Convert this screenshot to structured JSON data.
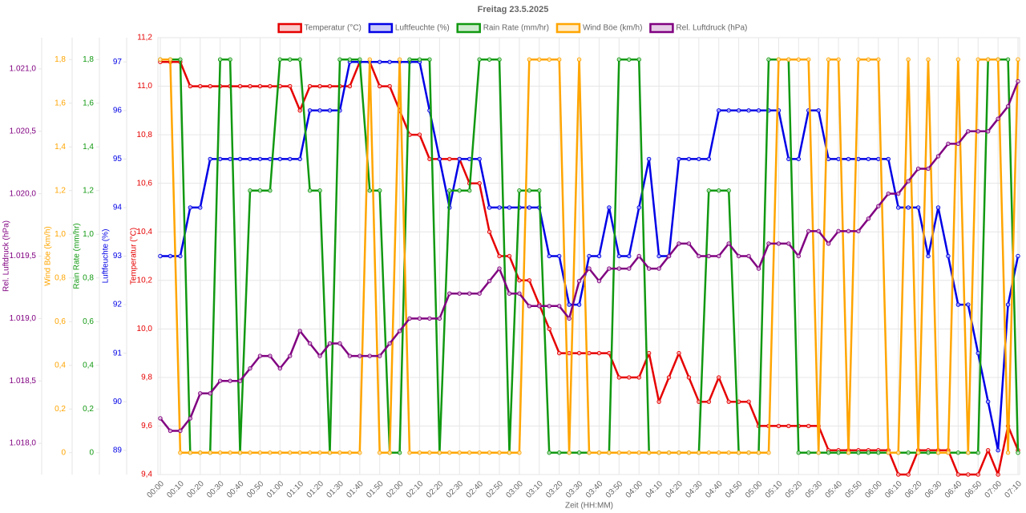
{
  "chart_data": {
    "type": "line",
    "title": "Freitag 23.5.2025",
    "xlabel": "Zeit (HH:MM)",
    "categories": [
      "00:00",
      null,
      "00:10",
      null,
      "00:20",
      null,
      "00:30",
      null,
      "00:40",
      null,
      "00:50",
      null,
      "01:00",
      null,
      "01:10",
      null,
      "01:20",
      null,
      "01:30",
      null,
      "01:40",
      null,
      "01:50",
      null,
      "02:00",
      null,
      "02:10",
      null,
      "02:20",
      null,
      "02:30",
      null,
      "02:40",
      null,
      "02:50",
      null,
      "03:00",
      null,
      "03:10",
      null,
      "03:20",
      null,
      "03:30",
      null,
      "03:40",
      null,
      "03:50",
      null,
      "04:00",
      null,
      "04:10",
      null,
      "04:20",
      null,
      "04:30",
      null,
      "04:40",
      null,
      "04:50",
      null,
      "05:00",
      null,
      "05:10",
      null,
      "05:20",
      null,
      "05:30",
      null,
      "05:40",
      null,
      "05:50",
      null,
      "06:00",
      null,
      "06:10",
      null,
      "06:20",
      null,
      "06:30",
      null,
      "06:40",
      null,
      "06:50",
      null,
      "07:00",
      null,
      "07:10"
    ],
    "grid": true,
    "ylabel": "Temperatur (°C)",
    "ylim": [
      9.4,
      11.2
    ],
    "yticks": [
      {
        "value": 9.4,
        "label": "9,4"
      },
      {
        "value": 9.6,
        "label": "9,6"
      },
      {
        "value": 9.8,
        "label": "9,8"
      },
      {
        "value": 10.0,
        "label": "10,0"
      },
      {
        "value": 10.2,
        "label": "10,2"
      },
      {
        "value": 10.4,
        "label": "10,4"
      },
      {
        "value": 10.6,
        "label": "10,6"
      },
      {
        "value": 10.8,
        "label": "10,8"
      },
      {
        "value": 11.0,
        "label": "11,0"
      },
      {
        "value": 11.2,
        "label": "11,2"
      }
    ],
    "y2label": "Luftfeuchte (%)",
    "y2lim": [
      88.5,
      97.5
    ],
    "y2ticks": [
      89,
      90,
      91,
      92,
      93,
      94,
      95,
      96,
      97
    ],
    "y3label": "Rain Rate (mm/hr)",
    "y3lim": [
      -0.1,
      1.9
    ],
    "y3ticks": [
      0,
      {
        "value": 0.2,
        "label": "0,2"
      },
      {
        "value": 0.4,
        "label": "0,4"
      },
      {
        "value": 0.6,
        "label": "0,6"
      },
      {
        "value": 0.8,
        "label": "0,8"
      },
      {
        "value": 1.0,
        "label": "1,0"
      },
      {
        "value": 1.2,
        "label": "1,2"
      },
      {
        "value": 1.4,
        "label": "1,4"
      },
      {
        "value": 1.6,
        "label": "1,6"
      },
      {
        "value": 1.8,
        "label": "1,8"
      }
    ],
    "y4label": "Wind Böe (km/h)",
    "y4lim": [
      -0.1,
      1.9
    ],
    "y4ticks": [
      0,
      {
        "value": 0.2,
        "label": "0,2"
      },
      {
        "value": 0.4,
        "label": "0,4"
      },
      {
        "value": 0.6,
        "label": "0,6"
      },
      {
        "value": 0.8,
        "label": "0,8"
      },
      {
        "value": 1.0,
        "label": "1,0"
      },
      {
        "value": 1.2,
        "label": "1,2"
      },
      {
        "value": 1.4,
        "label": "1,4"
      },
      {
        "value": 1.6,
        "label": "1,6"
      },
      {
        "value": 1.8,
        "label": "1,8"
      }
    ],
    "y5label": "Rel. Luftdruck (hPa)",
    "y5lim": [
      1017.75,
      1021.25
    ],
    "y5ticks": [
      {
        "value": 1018.0,
        "label": "1.018,0"
      },
      {
        "value": 1018.5,
        "label": "1.018,5"
      },
      {
        "value": 1019.0,
        "label": "1.019,0"
      },
      {
        "value": 1019.5,
        "label": "1.019,5"
      },
      {
        "value": 1020.0,
        "label": "1.020,0"
      },
      {
        "value": 1020.5,
        "label": "1.020,5"
      },
      {
        "value": 1021.0,
        "label": "1.021,0"
      }
    ],
    "series": [
      {
        "name": "Temperatur (°C)",
        "color": "#e60000",
        "axis": "y",
        "values": [
          11.1,
          11.1,
          11.1,
          11.0,
          11.0,
          11.0,
          11.0,
          11.0,
          11.0,
          11.0,
          11.0,
          11.0,
          11.0,
          11.0,
          10.9,
          11.0,
          11.0,
          11.0,
          11.0,
          11.0,
          11.1,
          11.1,
          11.0,
          11.0,
          10.9,
          10.8,
          10.8,
          10.7,
          10.7,
          10.7,
          10.7,
          10.6,
          10.6,
          10.4,
          10.3,
          10.3,
          10.2,
          10.2,
          10.1,
          10.0,
          9.9,
          9.9,
          9.9,
          9.9,
          9.9,
          9.9,
          9.8,
          9.8,
          9.8,
          9.9,
          9.7,
          9.8,
          9.9,
          9.8,
          9.7,
          9.7,
          9.8,
          9.7,
          9.7,
          9.7,
          9.6,
          9.6,
          9.6,
          9.6,
          9.6,
          9.6,
          9.6,
          9.5,
          9.5,
          9.5,
          9.5,
          9.5,
          9.5,
          9.5,
          9.4,
          9.4,
          9.5,
          9.5,
          9.5,
          9.5,
          9.4,
          9.4,
          9.4,
          9.5,
          9.4,
          9.6,
          9.5
        ]
      },
      {
        "name": "Luftfeuchte (%)",
        "color": "#0000e6",
        "axis": "y2",
        "values": [
          93,
          93,
          93,
          94,
          94,
          95,
          95,
          95,
          95,
          95,
          95,
          95,
          95,
          95,
          95,
          96,
          96,
          96,
          96,
          97,
          97,
          97,
          97,
          97,
          97,
          97,
          97,
          96,
          95,
          94,
          95,
          95,
          95,
          94,
          94,
          94,
          94,
          94,
          94,
          93,
          93,
          92,
          92,
          93,
          93,
          94,
          93,
          93,
          94,
          95,
          93,
          93,
          95,
          95,
          95,
          95,
          96,
          96,
          96,
          96,
          96,
          96,
          96,
          95,
          95,
          96,
          96,
          95,
          95,
          95,
          95,
          95,
          95,
          95,
          94,
          94,
          94,
          93,
          94,
          93,
          92,
          92,
          91,
          90,
          89,
          92,
          93
        ]
      },
      {
        "name": "Rain Rate (mm/hr)",
        "color": "#119911",
        "axis": "y3",
        "values": [
          1.8,
          1.8,
          1.8,
          0,
          0,
          0,
          1.8,
          1.8,
          0,
          1.2,
          1.2,
          1.2,
          1.8,
          1.8,
          1.8,
          1.2,
          1.2,
          0,
          1.8,
          1.8,
          1.8,
          1.2,
          1.2,
          0,
          0,
          1.8,
          1.8,
          1.8,
          0,
          1.2,
          1.2,
          1.2,
          1.8,
          1.8,
          1.8,
          0,
          1.2,
          1.2,
          1.2,
          0,
          0,
          0,
          0,
          0,
          0,
          0,
          1.8,
          1.8,
          1.8,
          0,
          0,
          0,
          0,
          0,
          0,
          1.2,
          1.2,
          1.2,
          0,
          0,
          0,
          1.8,
          1.8,
          1.8,
          0,
          0,
          0,
          0,
          0,
          0,
          0,
          0,
          0,
          0,
          0,
          0,
          0,
          0,
          0,
          0,
          0,
          0,
          0,
          1.8,
          1.8,
          1.8,
          0
        ]
      },
      {
        "name": "Wind Böe (km/h)",
        "color": "#ffa500",
        "axis": "y4",
        "values": [
          1.8,
          1.8,
          0,
          0,
          0,
          0,
          0,
          0,
          0,
          0,
          0,
          0,
          0,
          0,
          0,
          0,
          0,
          0,
          0,
          0,
          0,
          1.8,
          0,
          0,
          1.8,
          0,
          0,
          0,
          0,
          0,
          0,
          0,
          0,
          0,
          0,
          0,
          0,
          1.8,
          1.8,
          1.8,
          1.8,
          0,
          1.8,
          0,
          0,
          0,
          0,
          0,
          0,
          0,
          0,
          0,
          0,
          0,
          0,
          0,
          0,
          0,
          0,
          0,
          0,
          0,
          1.8,
          1.8,
          1.8,
          1.8,
          0,
          1.8,
          1.8,
          0,
          1.8,
          1.8,
          1.8,
          0,
          0,
          1.8,
          0,
          1.8,
          0,
          0,
          1.8,
          0,
          1.8,
          1.8,
          1.8,
          0,
          1.8
        ]
      },
      {
        "name": "Rel. Luftdruck (hPa)",
        "color": "#800080",
        "axis": "y5",
        "values": [
          1018.2,
          1018.1,
          1018.1,
          1018.2,
          1018.4,
          1018.4,
          1018.5,
          1018.5,
          1018.5,
          1018.6,
          1018.7,
          1018.7,
          1018.6,
          1018.7,
          1018.9,
          1018.8,
          1018.7,
          1018.8,
          1018.8,
          1018.7,
          1018.7,
          1018.7,
          1018.7,
          1018.8,
          1018.9,
          1019.0,
          1019.0,
          1019.0,
          1019.0,
          1019.2,
          1019.2,
          1019.2,
          1019.2,
          1019.3,
          1019.4,
          1019.2,
          1019.2,
          1019.1,
          1019.1,
          1019.1,
          1019.1,
          1019.0,
          1019.3,
          1019.4,
          1019.3,
          1019.4,
          1019.4,
          1019.4,
          1019.5,
          1019.4,
          1019.4,
          1019.5,
          1019.6,
          1019.6,
          1019.5,
          1019.5,
          1019.5,
          1019.6,
          1019.5,
          1019.5,
          1019.4,
          1019.6,
          1019.6,
          1019.6,
          1019.5,
          1019.7,
          1019.7,
          1019.6,
          1019.7,
          1019.7,
          1019.7,
          1019.8,
          1019.9,
          1020.0,
          1020.0,
          1020.1,
          1020.2,
          1020.2,
          1020.3,
          1020.4,
          1020.4,
          1020.5,
          1020.5,
          1020.5,
          1020.6,
          1020.7,
          1020.9
        ]
      }
    ]
  }
}
